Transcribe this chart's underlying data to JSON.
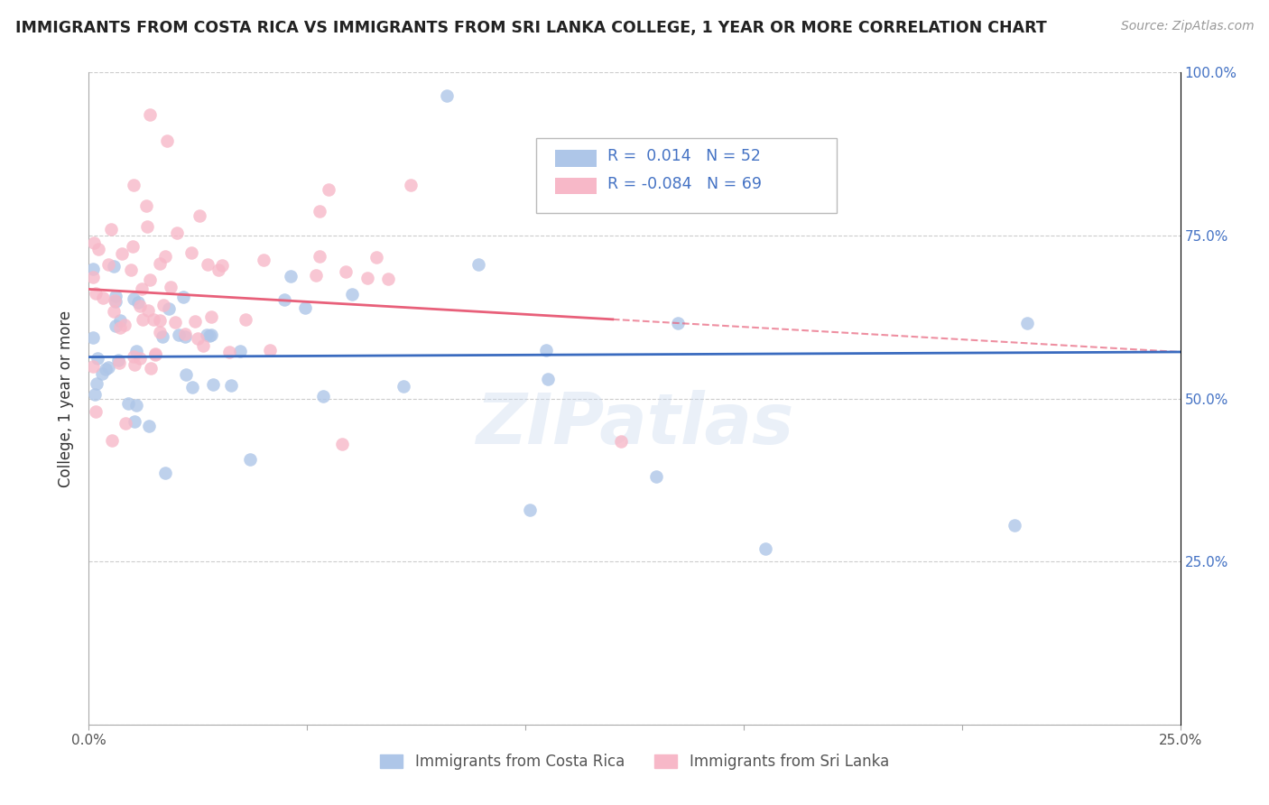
{
  "title": "IMMIGRANTS FROM COSTA RICA VS IMMIGRANTS FROM SRI LANKA COLLEGE, 1 YEAR OR MORE CORRELATION CHART",
  "source": "Source: ZipAtlas.com",
  "ylabel": "College, 1 year or more",
  "legend_label_blue": "Immigrants from Costa Rica",
  "legend_label_pink": "Immigrants from Sri Lanka",
  "r_blue": 0.014,
  "n_blue": 52,
  "r_pink": -0.084,
  "n_pink": 69,
  "xlim": [
    0.0,
    0.25
  ],
  "ylim": [
    0.0,
    1.0
  ],
  "xticks": [
    0.0,
    0.05,
    0.1,
    0.15,
    0.2,
    0.25
  ],
  "yticks": [
    0.0,
    0.25,
    0.5,
    0.75,
    1.0
  ],
  "xtick_labels": [
    "0.0%",
    "",
    "",
    "",
    "",
    "25.0%"
  ],
  "ytick_labels_right": [
    "",
    "25.0%",
    "50.0%",
    "75.0%",
    "100.0%"
  ],
  "color_blue": "#aec6e8",
  "color_blue_line": "#3a6bbf",
  "color_pink": "#f7b8c8",
  "color_pink_line": "#e8607a",
  "color_dashed": "#e8607a",
  "watermark": "ZIPatlas",
  "blue_seed": 42,
  "pink_seed": 7
}
